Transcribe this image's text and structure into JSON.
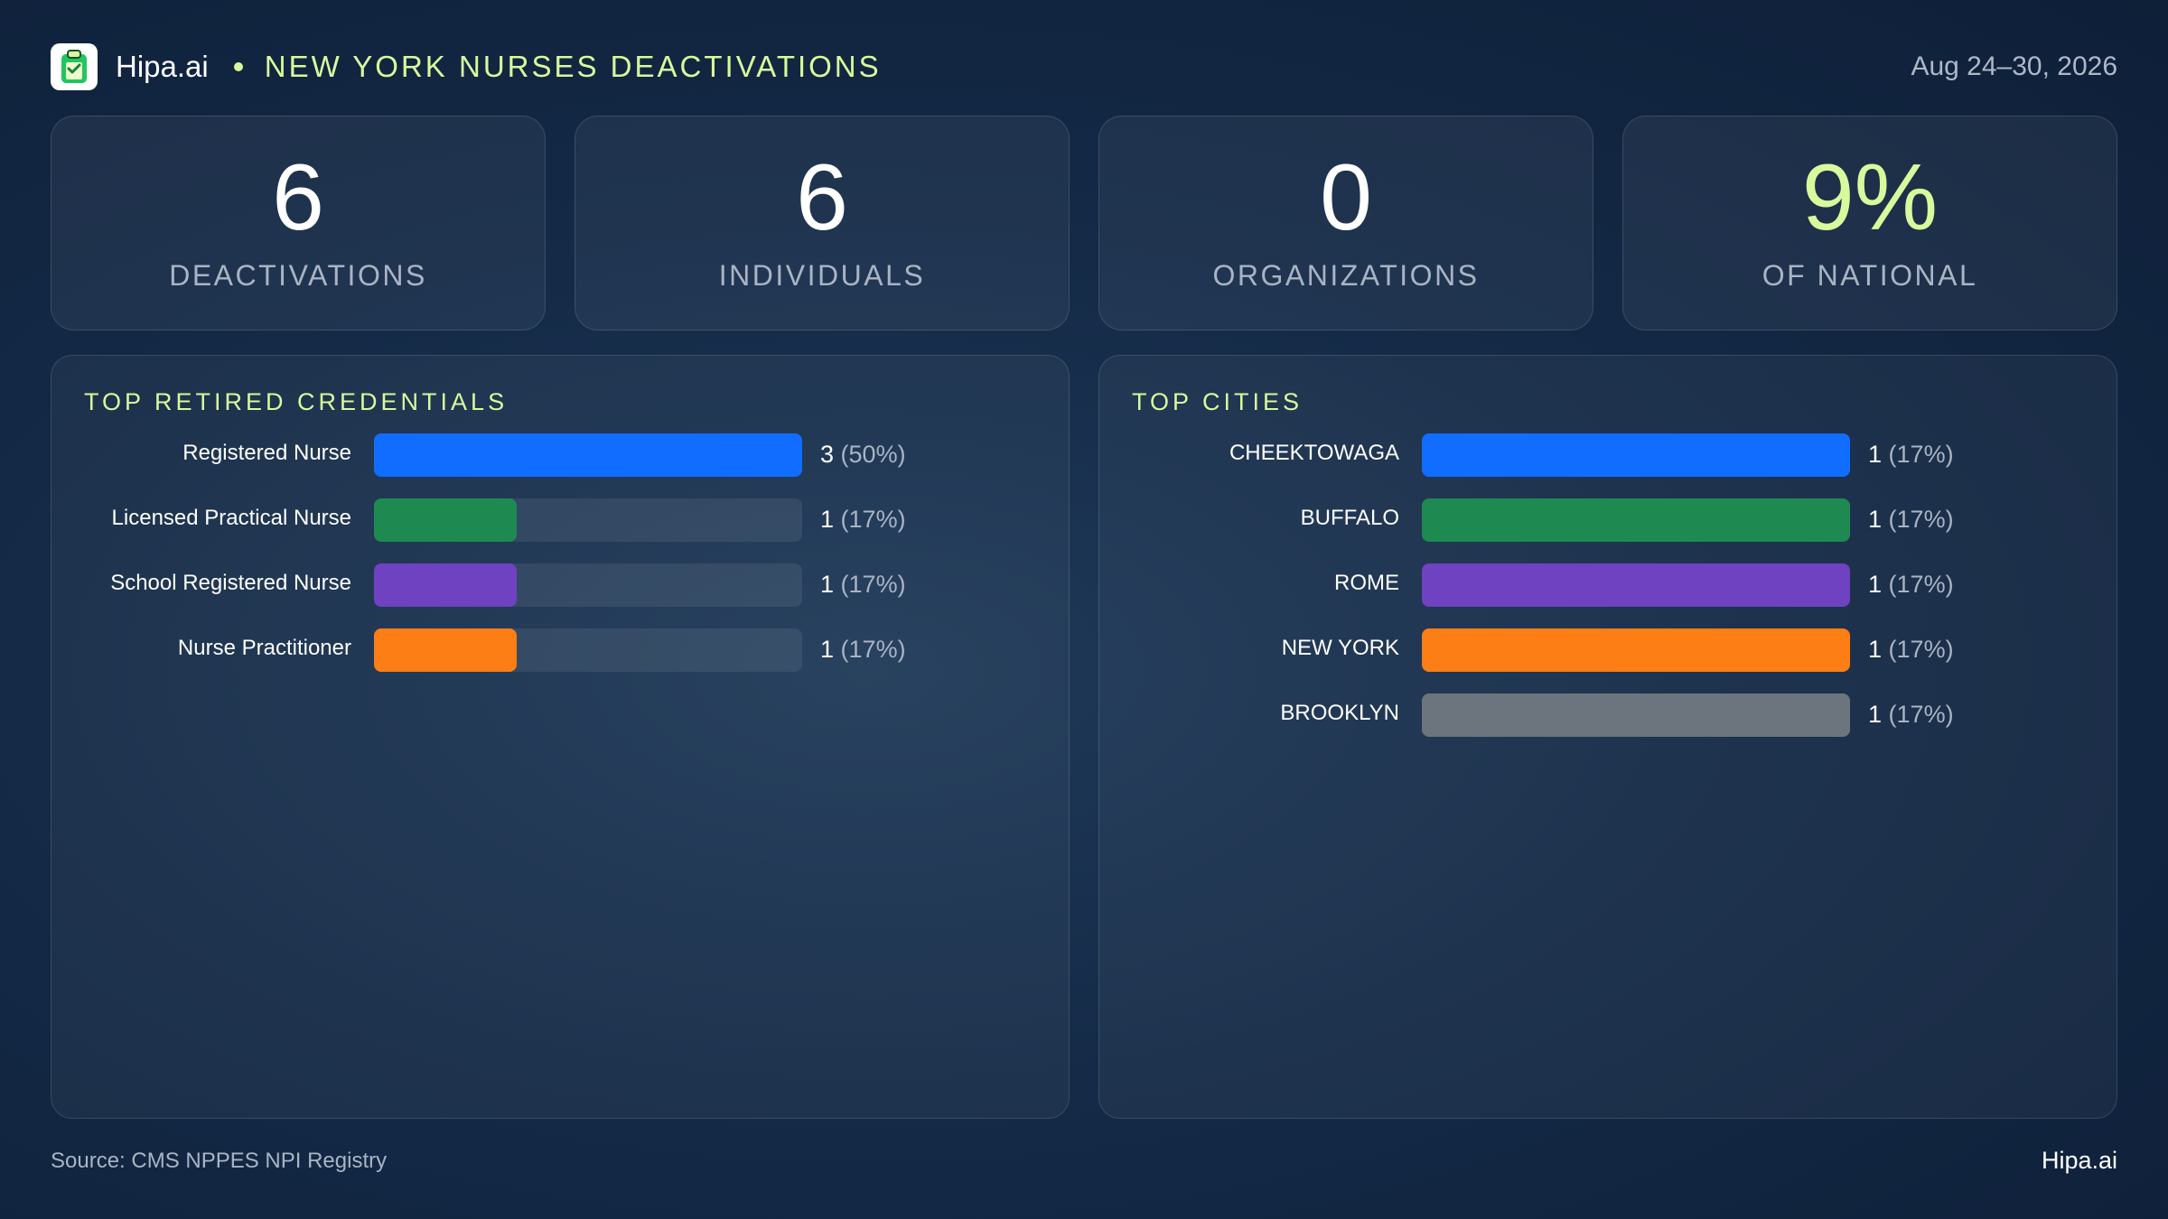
{
  "header": {
    "brand": "Hipa.ai",
    "title": "NEW YORK NURSES DEACTIVATIONS",
    "date_range": "Aug 24–30, 2026",
    "logo_icon": "clipboard-icon"
  },
  "kpis": [
    {
      "value": "6",
      "label": "DEACTIVATIONS",
      "accent": false
    },
    {
      "value": "6",
      "label": "INDIVIDUALS",
      "accent": false
    },
    {
      "value": "0",
      "label": "ORGANIZATIONS",
      "accent": false
    },
    {
      "value": "9%",
      "label": "OF NATIONAL",
      "accent": true
    }
  ],
  "chart_data": [
    {
      "type": "bar",
      "orientation": "horizontal",
      "title": "TOP RETIRED CREDENTIALS",
      "categories": [
        "Registered Nurse",
        "Licensed Practical Nurse",
        "School Registered Nurse",
        "Nurse Practitioner"
      ],
      "values": [
        3,
        1,
        1,
        1
      ],
      "value_labels": [
        "3",
        "1",
        "1",
        "1"
      ],
      "percent_labels": [
        "(50%)",
        "(17%)",
        "(17%)",
        "(17%)"
      ],
      "colors": [
        "#116dff",
        "#1e8a52",
        "#6f42c1",
        "#fd7e14"
      ],
      "xlim": [
        0,
        3
      ]
    },
    {
      "type": "bar",
      "orientation": "horizontal",
      "title": "TOP CITIES",
      "categories": [
        "CHEEKTOWAGA",
        "BUFFALO",
        "ROME",
        "NEW YORK",
        "BROOKLYN"
      ],
      "values": [
        1,
        1,
        1,
        1,
        1
      ],
      "value_labels": [
        "1",
        "1",
        "1",
        "1",
        "1"
      ],
      "percent_labels": [
        "(17%)",
        "(17%)",
        "(17%)",
        "(17%)",
        "(17%)"
      ],
      "colors": [
        "#116dff",
        "#1e8a52",
        "#6f42c1",
        "#fd7e14",
        "#6c757d"
      ],
      "xlim": [
        0,
        1
      ]
    }
  ],
  "footer": {
    "source": "Source: CMS NPPES NPI Registry",
    "brand": "Hipa.ai"
  }
}
